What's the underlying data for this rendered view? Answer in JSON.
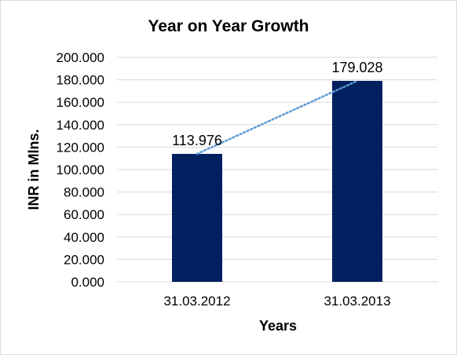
{
  "chart_data": {
    "type": "bar",
    "title": "Year on Year Growth",
    "xlabel": "Years",
    "ylabel": "INR in Mlns.",
    "categories": [
      "31.03.2012",
      "31.03.2013"
    ],
    "values": [
      113.976,
      179.028
    ],
    "data_labels": [
      "113.976",
      "179.028"
    ],
    "ylim": [
      0,
      200
    ],
    "yticks": [
      0,
      20,
      40,
      60,
      80,
      100,
      120,
      140,
      160,
      180,
      200
    ],
    "ytick_labels": [
      "0.000",
      "20.000",
      "40.000",
      "60.000",
      "80.000",
      "100.000",
      "120.000",
      "140.000",
      "160.000",
      "180.000",
      "200.000"
    ],
    "grid": true,
    "trendline": "linear, dotted",
    "colors": {
      "bar": "#002060",
      "trendline": "#5b9bd5",
      "grid": "#d9d9d9"
    }
  }
}
